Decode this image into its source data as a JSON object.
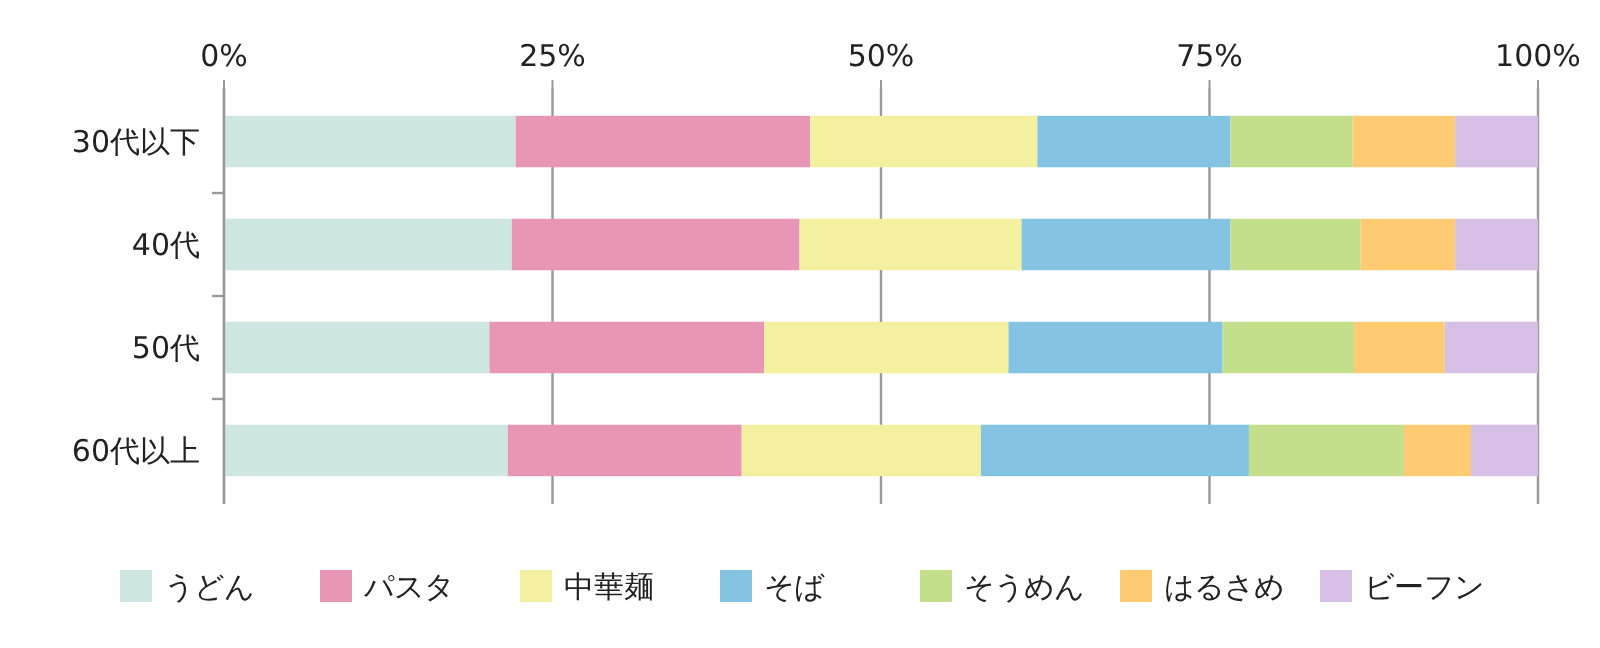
{
  "chart_data": {
    "type": "bar",
    "orientation": "horizontal",
    "stacked": true,
    "categories": [
      "30代以下",
      "40代",
      "50代",
      "60代以上"
    ],
    "series": [
      {
        "name": "うどん",
        "color": "#cfe7e3",
        "values": [
          22.2,
          21.9,
          20.2,
          21.6
        ]
      },
      {
        "name": "パスタ",
        "color": "#e896b6",
        "values": [
          22.4,
          21.9,
          20.9,
          17.8
        ]
      },
      {
        "name": "中華麺",
        "color": "#f3f1a0",
        "values": [
          17.3,
          16.9,
          18.6,
          18.2
        ]
      },
      {
        "name": "そば",
        "color": "#85c3e3",
        "values": [
          14.7,
          15.9,
          16.3,
          20.4
        ]
      },
      {
        "name": "そうめん",
        "color": "#c4df8c",
        "values": [
          9.3,
          9.9,
          10.0,
          11.8
        ]
      },
      {
        "name": "はるさめ",
        "color": "#fecb72",
        "values": [
          7.8,
          7.2,
          6.9,
          5.1
        ]
      },
      {
        "name": "ビーフン",
        "color": "#d5bfe4",
        "values": [
          6.3,
          6.3,
          7.1,
          5.1
        ]
      }
    ],
    "xlim": [
      0,
      100
    ],
    "xticks": [
      {
        "value": 0,
        "label": "0%"
      },
      {
        "value": 25,
        "label": "25%"
      },
      {
        "value": 50,
        "label": "50%"
      },
      {
        "value": 75,
        "label": "75%"
      },
      {
        "value": 100,
        "label": "100%"
      }
    ],
    "grid": "x",
    "legend": "bottom"
  }
}
